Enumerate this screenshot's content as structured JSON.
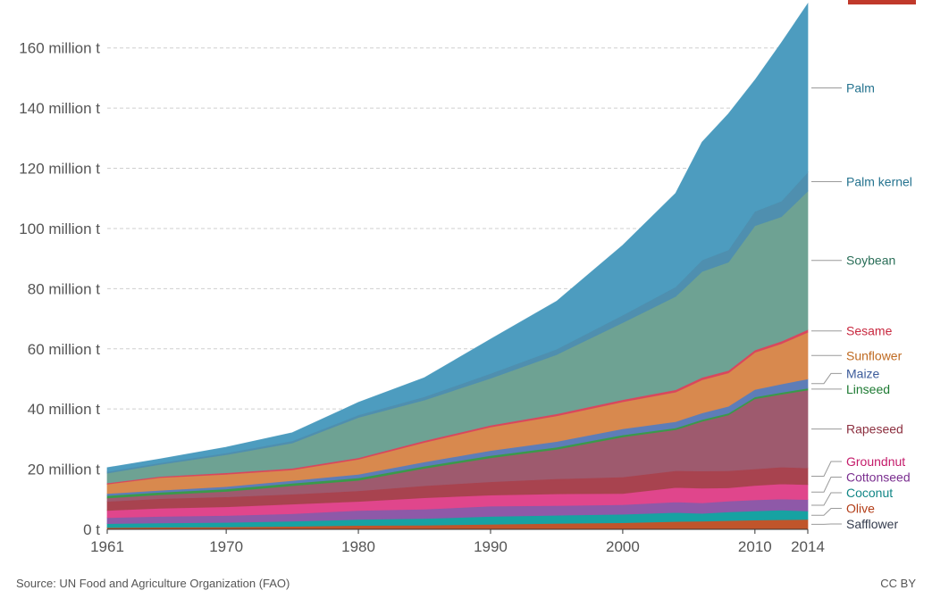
{
  "chart_data": {
    "type": "area",
    "stacked": true,
    "title": "",
    "xlabel": "",
    "ylabel": "",
    "x": [
      1961,
      1965,
      1970,
      1975,
      1980,
      1985,
      1990,
      1995,
      2000,
      2004,
      2006,
      2008,
      2010,
      2012,
      2014
    ],
    "xlim": [
      1961,
      2014
    ],
    "ylim": [
      0,
      170000000
    ],
    "x_ticks": [
      {
        "value": 1961,
        "label": "1961"
      },
      {
        "value": 1970,
        "label": "1970"
      },
      {
        "value": 1980,
        "label": "1980"
      },
      {
        "value": 1990,
        "label": "1990"
      },
      {
        "value": 2000,
        "label": "2000"
      },
      {
        "value": 2010,
        "label": "2010"
      },
      {
        "value": 2014,
        "label": "2014"
      }
    ],
    "y_ticks": [
      {
        "value": 0,
        "label": "0 t"
      },
      {
        "value": 20000000,
        "label": "20 million t"
      },
      {
        "value": 40000000,
        "label": "40 million t"
      },
      {
        "value": 60000000,
        "label": "60 million t"
      },
      {
        "value": 80000000,
        "label": "80 million t"
      },
      {
        "value": 100000000,
        "label": "100 million t"
      },
      {
        "value": 120000000,
        "label": "120 million t"
      },
      {
        "value": 140000000,
        "label": "140 million t"
      },
      {
        "value": 160000000,
        "label": "160 million t"
      }
    ],
    "grid": true,
    "legend_placement": "right",
    "series": [
      {
        "name": "Safflower",
        "color": "#c0552b",
        "values": [
          600000,
          700000,
          800000,
          1000000,
          1300000,
          1400000,
          1700000,
          2000000,
          2200000,
          2600000,
          2700000,
          2900000,
          3100000,
          3200000,
          3300000
        ]
      },
      {
        "name": "Olive",
        "color": "#17a2a2",
        "values": [
          1300000,
          1400000,
          1500000,
          1700000,
          2000000,
          2200000,
          2600000,
          2700000,
          2800000,
          3000000,
          2600000,
          2900000,
          3000000,
          3200000,
          2800000
        ]
      },
      {
        "name": "Coconut",
        "color": "#8e59a8",
        "values": [
          2000000,
          2200000,
          2300000,
          2500000,
          3000000,
          3100000,
          3400000,
          3200000,
          3200000,
          3500000,
          3500000,
          3600000,
          3700000,
          3700000,
          3800000
        ]
      },
      {
        "name": "Cottonseed",
        "color": "#e0468c",
        "values": [
          2400000,
          2700000,
          2900000,
          3200000,
          3000000,
          3800000,
          3700000,
          3900000,
          3700000,
          4800000,
          4900000,
          4400000,
          4800000,
          5000000,
          5000000
        ]
      },
      {
        "name": "Groundnut",
        "color": "#a8434f",
        "values": [
          3000000,
          3200000,
          3300000,
          3300000,
          3500000,
          4000000,
          4400000,
          5000000,
          5500000,
          5600000,
          5700000,
          5700000,
          5500000,
          5600000,
          5500000
        ]
      },
      {
        "name": "Rapeseed",
        "color": "#9e5a6e",
        "values": [
          1100000,
          1300000,
          1800000,
          2800000,
          3500000,
          5800000,
          8000000,
          9800000,
          13300000,
          13600000,
          16500000,
          18500000,
          23300000,
          24200000,
          25900000
        ]
      },
      {
        "name": "Linseed",
        "color": "#3a9a4a",
        "values": [
          800000,
          800000,
          800000,
          800000,
          800000,
          700000,
          700000,
          700000,
          700000,
          600000,
          600000,
          600000,
          600000,
          600000,
          600000
        ]
      },
      {
        "name": "Maize",
        "color": "#5d7db8",
        "values": [
          700000,
          700000,
          800000,
          900000,
          1200000,
          1400000,
          1700000,
          1900000,
          2000000,
          2100000,
          2200000,
          2300000,
          2500000,
          2800000,
          3100000
        ]
      },
      {
        "name": "Sunflower",
        "color": "#d8894e",
        "values": [
          3100000,
          4200000,
          4100000,
          3600000,
          5000000,
          6500000,
          7800000,
          8500000,
          9000000,
          9800000,
          11000000,
          11100000,
          12300000,
          13400000,
          15500000
        ]
      },
      {
        "name": "Sesame",
        "color": "#d9475d",
        "values": [
          400000,
          400000,
          500000,
          500000,
          500000,
          600000,
          600000,
          700000,
          700000,
          800000,
          800000,
          800000,
          800000,
          800000,
          900000
        ]
      },
      {
        "name": "Soybean",
        "color": "#6ea293",
        "values": [
          3300000,
          4000000,
          6000000,
          8400000,
          13400000,
          13500000,
          15600000,
          19700000,
          25600000,
          31000000,
          35200000,
          36000000,
          41300000,
          41400000,
          46000000
        ]
      },
      {
        "name": "Palm kernel",
        "color": "#4f8faf",
        "values": [
          500000,
          500000,
          600000,
          700000,
          800000,
          1100000,
          1600000,
          1800000,
          2500000,
          3200000,
          3800000,
          4100000,
          4800000,
          5200000,
          6300000
        ]
      },
      {
        "name": "Palm",
        "color": "#4d9cbf",
        "values": [
          1300000,
          1300000,
          1900000,
          2700000,
          4200000,
          6300000,
          11400000,
          15900000,
          23200000,
          31100000,
          39200000,
          45200000,
          43600000,
          52600000,
          56000000
        ]
      }
    ]
  },
  "legend_items": [
    {
      "label": "Palm",
      "color": "#25738f"
    },
    {
      "label": "Palm kernel",
      "color": "#25738f"
    },
    {
      "label": "Soybean",
      "color": "#2a6e58"
    },
    {
      "label": "Sesame",
      "color": "#c8283f"
    },
    {
      "label": "Sunflower",
      "color": "#bf6a21"
    },
    {
      "label": "Maize",
      "color": "#3b5a9a"
    },
    {
      "label": "Linseed",
      "color": "#1d7a32"
    },
    {
      "label": "Rapeseed",
      "color": "#8c2f3f"
    },
    {
      "label": "Groundnut",
      "color": "#c41b6a"
    },
    {
      "label": "Cottonseed",
      "color": "#7a2e8f"
    },
    {
      "label": "Coconut",
      "color": "#118686"
    },
    {
      "label": "Olive",
      "color": "#b23d17"
    },
    {
      "label": "Safflower",
      "color": "#333b4d"
    }
  ],
  "footer": {
    "source": "Source: UN Food and Agriculture Organization (FAO)",
    "license": "CC BY"
  },
  "brand_color": "#c0392b"
}
